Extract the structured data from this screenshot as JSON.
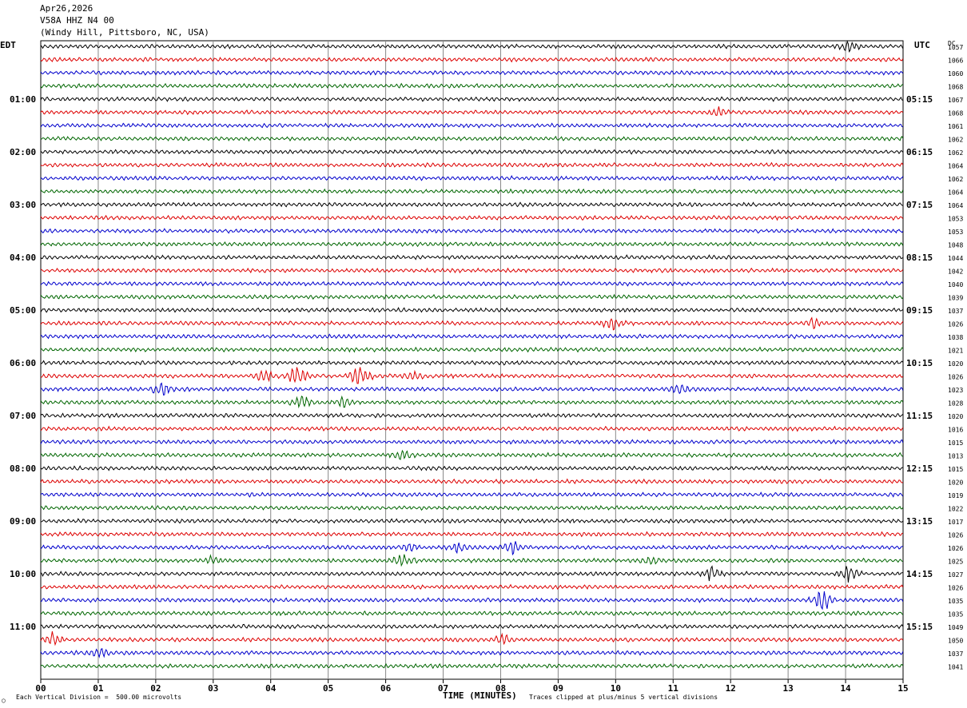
{
  "header": {
    "date": "Apr26,2026",
    "station": "V58A HHZ N4 00",
    "location": "(Windy Hill, Pittsboro, NC, USA)"
  },
  "left_tz": "EDT",
  "right_tz": "UTC",
  "dc_label": "DC",
  "footer": {
    "scale_note": "Each Vertical Division =  500.00 microvolts",
    "clip_note": "Traces clipped at plus/minus 5 vertical divisions",
    "corner_mark": "○"
  },
  "chart_data": {
    "type": "line",
    "xlabel": "TIME (MINUTES)",
    "x_ticks": [
      "00",
      "01",
      "02",
      "03",
      "04",
      "05",
      "06",
      "07",
      "08",
      "09",
      "10",
      "11",
      "12",
      "13",
      "14",
      "15"
    ],
    "xlim": [
      0,
      15
    ],
    "row_minutes": 15,
    "trace_colors": [
      "#000000",
      "#dd0000",
      "#0000cc",
      "#006600"
    ],
    "left_hour_labels": [
      "01:00",
      "02:00",
      "03:00",
      "04:00",
      "05:00",
      "06:00",
      "07:00",
      "08:00",
      "09:00",
      "10:00",
      "11:00"
    ],
    "right_hour_labels": [
      "05:15",
      "06:15",
      "07:15",
      "08:15",
      "09:15",
      "10:15",
      "11:15",
      "12:15",
      "13:15",
      "14:15",
      "15:15"
    ],
    "dc_offsets": [
      1057,
      1066,
      1060,
      1068,
      1067,
      1068,
      1061,
      1062,
      1062,
      1064,
      1062,
      1064,
      1064,
      1053,
      1053,
      1048,
      1044,
      1042,
      1040,
      1039,
      1037,
      1026,
      1038,
      1021,
      1020,
      1026,
      1023,
      1028,
      1020,
      1016,
      1015,
      1013,
      1015,
      1020,
      1019,
      1022,
      1017,
      1026,
      1026,
      1025,
      1027,
      1026,
      1035,
      1035,
      1049,
      1050,
      1037,
      1041
    ],
    "events": [
      {
        "row": 0,
        "minute": 14.05,
        "amp": 1.8
      },
      {
        "row": 5,
        "minute": 11.8,
        "amp": 1.4
      },
      {
        "row": 21,
        "minute": 9.95,
        "amp": 2.2
      },
      {
        "row": 21,
        "minute": 13.45,
        "amp": 1.6
      },
      {
        "row": 25,
        "minute": 4.45,
        "amp": 4.0
      },
      {
        "row": 25,
        "minute": 5.55,
        "amp": 4.2
      },
      {
        "row": 25,
        "minute": 3.9,
        "amp": 1.8
      },
      {
        "row": 25,
        "minute": 6.5,
        "amp": 1.5
      },
      {
        "row": 26,
        "minute": 2.1,
        "amp": 2.8
      },
      {
        "row": 26,
        "minute": 11.15,
        "amp": 1.6
      },
      {
        "row": 27,
        "minute": 4.55,
        "amp": 2.6
      },
      {
        "row": 27,
        "minute": 5.25,
        "amp": 1.8
      },
      {
        "row": 31,
        "minute": 6.3,
        "amp": 1.3
      },
      {
        "row": 38,
        "minute": 6.4,
        "amp": 1.5
      },
      {
        "row": 38,
        "minute": 7.25,
        "amp": 1.4
      },
      {
        "row": 38,
        "minute": 8.2,
        "amp": 2.2
      },
      {
        "row": 39,
        "minute": 6.3,
        "amp": 2.0
      },
      {
        "row": 39,
        "minute": 3.0,
        "amp": 1.4
      },
      {
        "row": 39,
        "minute": 10.6,
        "amp": 1.6
      },
      {
        "row": 40,
        "minute": 11.65,
        "amp": 2.0
      },
      {
        "row": 40,
        "minute": 14.05,
        "amp": 2.6
      },
      {
        "row": 42,
        "minute": 13.6,
        "amp": 4.5
      },
      {
        "row": 45,
        "minute": 0.2,
        "amp": 1.8
      },
      {
        "row": 45,
        "minute": 8.05,
        "amp": 1.6
      },
      {
        "row": 46,
        "minute": 1.0,
        "amp": 1.5
      }
    ]
  }
}
